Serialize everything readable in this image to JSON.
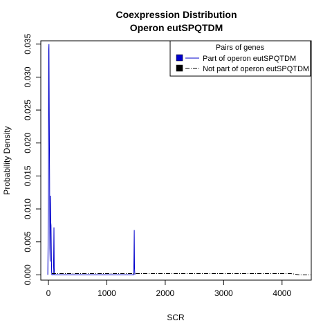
{
  "chart_data": {
    "type": "line",
    "title": "Coexpression Distribution",
    "subtitle": "Operon eutSPQTDM",
    "xlabel": "SCR",
    "ylabel": "Probability Density",
    "xlim": [
      -130,
      4500
    ],
    "ylim": [
      -0.0008,
      0.0355
    ],
    "x_ticks": [
      0,
      1000,
      2000,
      3000,
      4000
    ],
    "x_tick_labels": [
      "0",
      "1000",
      "2000",
      "3000",
      "4000"
    ],
    "y_ticks": [
      0.0,
      0.005,
      0.01,
      0.015,
      0.02,
      0.025,
      0.03,
      0.035
    ],
    "y_tick_labels": [
      "0.000",
      "0.005",
      "0.010",
      "0.015",
      "0.020",
      "0.025",
      "0.030",
      "0.035"
    ],
    "grid": false,
    "legend": {
      "title": "Pairs of genes",
      "position": "top-right",
      "entries": [
        "Part of operon eutSPQTDM",
        "Not part of operon eutSPQTDM"
      ]
    },
    "series": [
      {
        "name": "Part of operon eutSPQTDM",
        "color": "#0000cc",
        "style": "solid",
        "x": [
          -10,
          0,
          5,
          10,
          15,
          20,
          25,
          30,
          35,
          40,
          45,
          50,
          55,
          60,
          65,
          70,
          75,
          80,
          85,
          90,
          95,
          100,
          105,
          110,
          500,
          1000,
          1460,
          1465,
          1470,
          1475,
          1480
        ],
        "y": [
          0.0,
          0.01,
          0.034,
          0.035,
          0.025,
          0.015,
          0.004,
          0.002,
          0.012,
          0.008,
          0.0075,
          0.004,
          0.0005,
          0.0,
          0.0,
          0.0,
          0.0,
          0.0,
          0.0,
          0.003,
          0.0072,
          0.001,
          0.0,
          0.0,
          0.0,
          0.0,
          0.0,
          0.003,
          0.0068,
          0.001,
          0.0
        ]
      },
      {
        "name": "Not part of operon eutSPQTDM",
        "color": "#000000",
        "style": "dashdot",
        "x": [
          60,
          100,
          500,
          1000,
          1500,
          2000,
          2500,
          3000,
          3500,
          4000,
          4150,
          4300,
          4500
        ],
        "y": [
          0.0002,
          0.0002,
          0.0002,
          0.0002,
          0.0002,
          0.0002,
          0.0002,
          0.0002,
          0.0002,
          0.0002,
          0.0002,
          0.0,
          0.0
        ]
      }
    ]
  }
}
